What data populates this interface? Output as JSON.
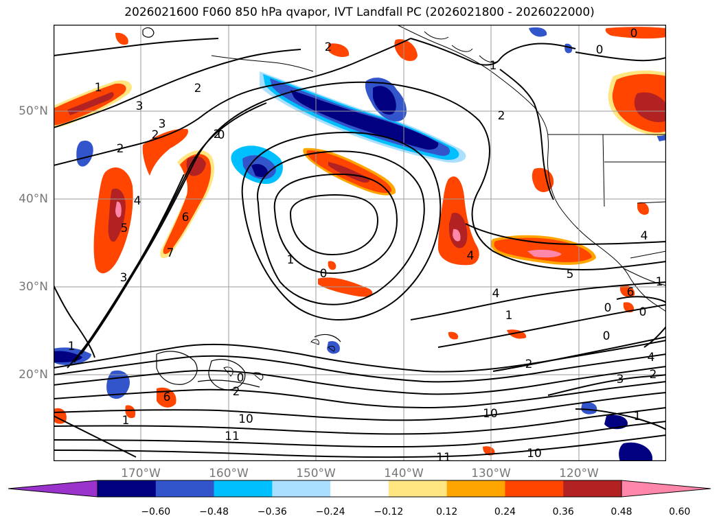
{
  "title": "2026021600 F060 850 hPa qvapor, IVT Landfall PC (2026021800 - 2026022000)",
  "lat_labels": [
    "50°N",
    "40°N",
    "30°N",
    "20°N"
  ],
  "lon_labels": [
    "170°W",
    "160°W",
    "150°W",
    "140°W",
    "130°W",
    "120°W"
  ],
  "colorbar": {
    "ticks": [
      "−0.60",
      "−0.48",
      "−0.36",
      "−0.24",
      "−0.12",
      "0.12",
      "0.24",
      "0.36",
      "0.48",
      "0.60"
    ],
    "colors": [
      "#9933cc",
      "#000080",
      "#3355cc",
      "#00bfff",
      "#aadfff",
      "#ffffff",
      "#ffe680",
      "#ffa500",
      "#ff4500",
      "#b22222",
      "#ff88aa"
    ]
  },
  "contour_labels": [
    "2",
    "1",
    "3",
    "2",
    "3",
    "2",
    "4",
    "2",
    "5",
    "6",
    "7",
    "1",
    "2",
    "1",
    "4",
    "3",
    "0",
    "1",
    "0",
    "4",
    "5",
    "1",
    "2",
    "0",
    "0",
    "4",
    "2",
    "3",
    "2",
    "10",
    "11",
    "10",
    "11",
    "10",
    "0",
    "0",
    "1",
    "0",
    "6",
    "6",
    "1",
    "0",
    "2",
    "1",
    "4"
  ]
}
